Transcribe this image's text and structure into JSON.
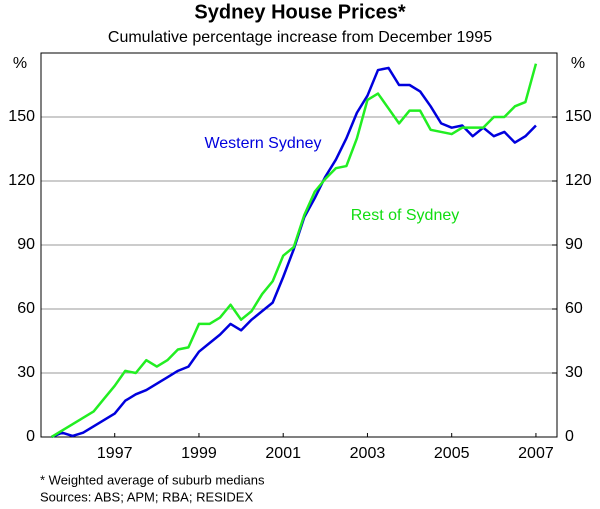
{
  "chart_data": {
    "type": "line",
    "title": "Sydney House Prices*",
    "subtitle": "Cumulative percentage increase from December 1995",
    "ylabel": "%",
    "y2label": "%",
    "x": [
      1996,
      1996.25,
      1996.5,
      1996.75,
      1997,
      1997.25,
      1997.5,
      1997.75,
      1998,
      1998.25,
      1998.5,
      1998.75,
      1999,
      1999.25,
      1999.5,
      1999.75,
      2000,
      2000.25,
      2000.5,
      2000.75,
      2001,
      2001.25,
      2001.5,
      2001.75,
      2002,
      2002.25,
      2002.5,
      2002.75,
      2003,
      2003.25,
      2003.5,
      2003.75,
      2004,
      2004.25,
      2004.5,
      2004.75,
      2005,
      2005.25,
      2005.5,
      2005.75,
      2006,
      2006.25,
      2006.5,
      2006.75,
      2007,
      2007.25,
      2007.5
    ],
    "series": [
      {
        "name": "Western Sydney",
        "color": "#0000dd",
        "values": [
          0,
          2,
          0.5,
          2,
          5,
          8,
          11,
          17,
          20,
          22,
          25,
          28,
          31,
          33,
          40,
          44,
          48,
          53,
          50,
          55,
          59,
          63,
          75,
          88,
          103,
          112,
          122,
          130,
          140,
          152,
          160,
          172,
          173,
          165,
          165,
          162,
          155,
          147,
          145,
          146,
          141,
          145,
          141,
          143,
          138,
          141,
          146
        ]
      },
      {
        "name": "Rest of Sydney",
        "color": "#22ee22",
        "values": [
          0,
          3,
          6,
          9,
          12,
          18,
          24,
          31,
          30,
          36,
          33,
          36,
          41,
          42,
          53,
          53,
          56,
          62,
          55,
          59,
          67,
          73,
          85,
          89,
          104,
          115,
          121,
          126,
          127,
          140,
          158,
          161,
          154,
          147,
          153,
          153,
          144,
          143,
          142,
          145,
          145,
          145,
          150,
          150,
          155,
          157,
          175
        ]
      }
    ],
    "xlim": [
      1995.75,
      2008
    ],
    "xticks": [
      {
        "value": 1997.5,
        "label": "1997"
      },
      {
        "value": 1999.5,
        "label": "1999"
      },
      {
        "value": 2001.5,
        "label": "2001"
      },
      {
        "value": 2003.5,
        "label": "2003"
      },
      {
        "value": 2005.5,
        "label": "2005"
      },
      {
        "value": 2007.5,
        "label": "2007"
      }
    ],
    "ylim": [
      0,
      180
    ],
    "yticks": [
      0,
      30,
      60,
      90,
      120,
      150
    ],
    "y2lim": [
      0,
      180
    ],
    "y2ticks": [
      0,
      30,
      60,
      90,
      120,
      150
    ],
    "grid": true,
    "footnotes": [
      "*   Weighted average of suburb medians",
      "Sources: ABS; APM; RBA; RESIDEX"
    ]
  }
}
